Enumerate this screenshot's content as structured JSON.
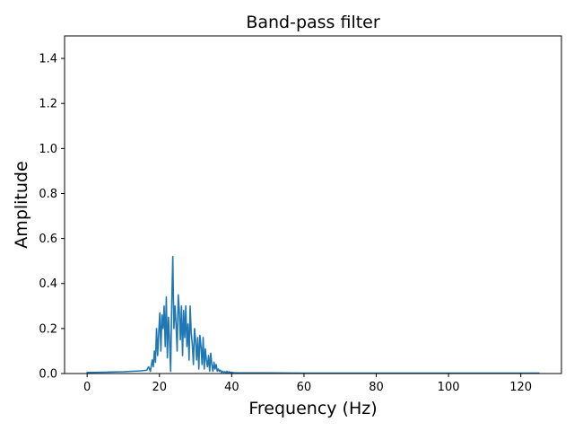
{
  "chart_data": {
    "type": "line",
    "title": "Band-pass filter",
    "xlabel": "Frequency (Hz)",
    "ylabel": "Amplitude",
    "xlim": [
      -6.25,
      131.25
    ],
    "ylim": [
      0,
      1.5
    ],
    "xticks": [
      0,
      20,
      40,
      60,
      80,
      100,
      120
    ],
    "xtick_labels": [
      "0",
      "20",
      "40",
      "60",
      "80",
      "100",
      "120"
    ],
    "yticks": [
      0.0,
      0.2,
      0.4,
      0.6,
      0.8,
      1.0,
      1.2,
      1.4
    ],
    "ytick_labels": [
      "0.0",
      "0.2",
      "0.4",
      "0.6",
      "0.8",
      "1.0",
      "1.2",
      "1.4"
    ],
    "grid": false,
    "colors": {
      "series": "#1f77b4"
    },
    "series": [
      {
        "x": [
          0,
          5,
          10,
          15,
          16.5,
          17.0,
          17.5,
          18.0,
          18.3,
          18.6,
          18.9,
          19.2,
          19.5,
          19.8,
          20.1,
          20.4,
          20.7,
          21.0,
          21.3,
          21.6,
          21.9,
          22.2,
          22.5,
          22.8,
          23.1,
          23.4,
          23.7,
          24.0,
          24.3,
          24.6,
          24.9,
          25.2,
          25.5,
          25.8,
          26.1,
          26.4,
          26.7,
          27.0,
          27.3,
          27.6,
          27.9,
          28.2,
          28.5,
          28.8,
          29.1,
          29.4,
          29.7,
          30.0,
          30.3,
          30.6,
          30.9,
          31.2,
          31.5,
          31.8,
          32.1,
          32.4,
          32.7,
          33.0,
          33.3,
          33.6,
          33.9,
          34.2,
          34.5,
          34.8,
          35.1,
          35.4,
          35.7,
          36.0,
          36.3,
          36.6,
          36.9,
          37.2,
          37.5,
          37.8,
          38.1,
          38.4,
          38.7,
          39.0,
          39.3,
          39.6,
          39.9,
          40.5,
          42,
          45,
          50,
          60,
          80,
          100,
          125
        ],
        "y": [
          0.005,
          0.006,
          0.008,
          0.012,
          0.015,
          0.03,
          0.01,
          0.06,
          0.03,
          0.1,
          0.05,
          0.2,
          0.08,
          0.18,
          0.27,
          0.1,
          0.26,
          0.2,
          0.3,
          0.12,
          0.34,
          0.07,
          0.25,
          0.15,
          0.01,
          0.3,
          0.52,
          0.2,
          0.3,
          0.22,
          0.1,
          0.35,
          0.28,
          0.15,
          0.3,
          0.08,
          0.28,
          0.16,
          0.3,
          0.12,
          0.22,
          0.06,
          0.3,
          0.18,
          0.13,
          0.04,
          0.2,
          0.15,
          0.06,
          0.16,
          0.02,
          0.17,
          0.12,
          0.04,
          0.16,
          0.02,
          0.11,
          0.06,
          0.03,
          0.08,
          0.01,
          0.09,
          0.04,
          0.01,
          0.05,
          0.02,
          0.04,
          0.01,
          0.02,
          0.01,
          0.015,
          0.005,
          0.01,
          0.005,
          0.008,
          0.004,
          0.01,
          0.003,
          0.008,
          0.004,
          0.006,
          0.004,
          0.003,
          0.003,
          0.003,
          0.002,
          0.002,
          0.002,
          0.002
        ]
      }
    ]
  }
}
